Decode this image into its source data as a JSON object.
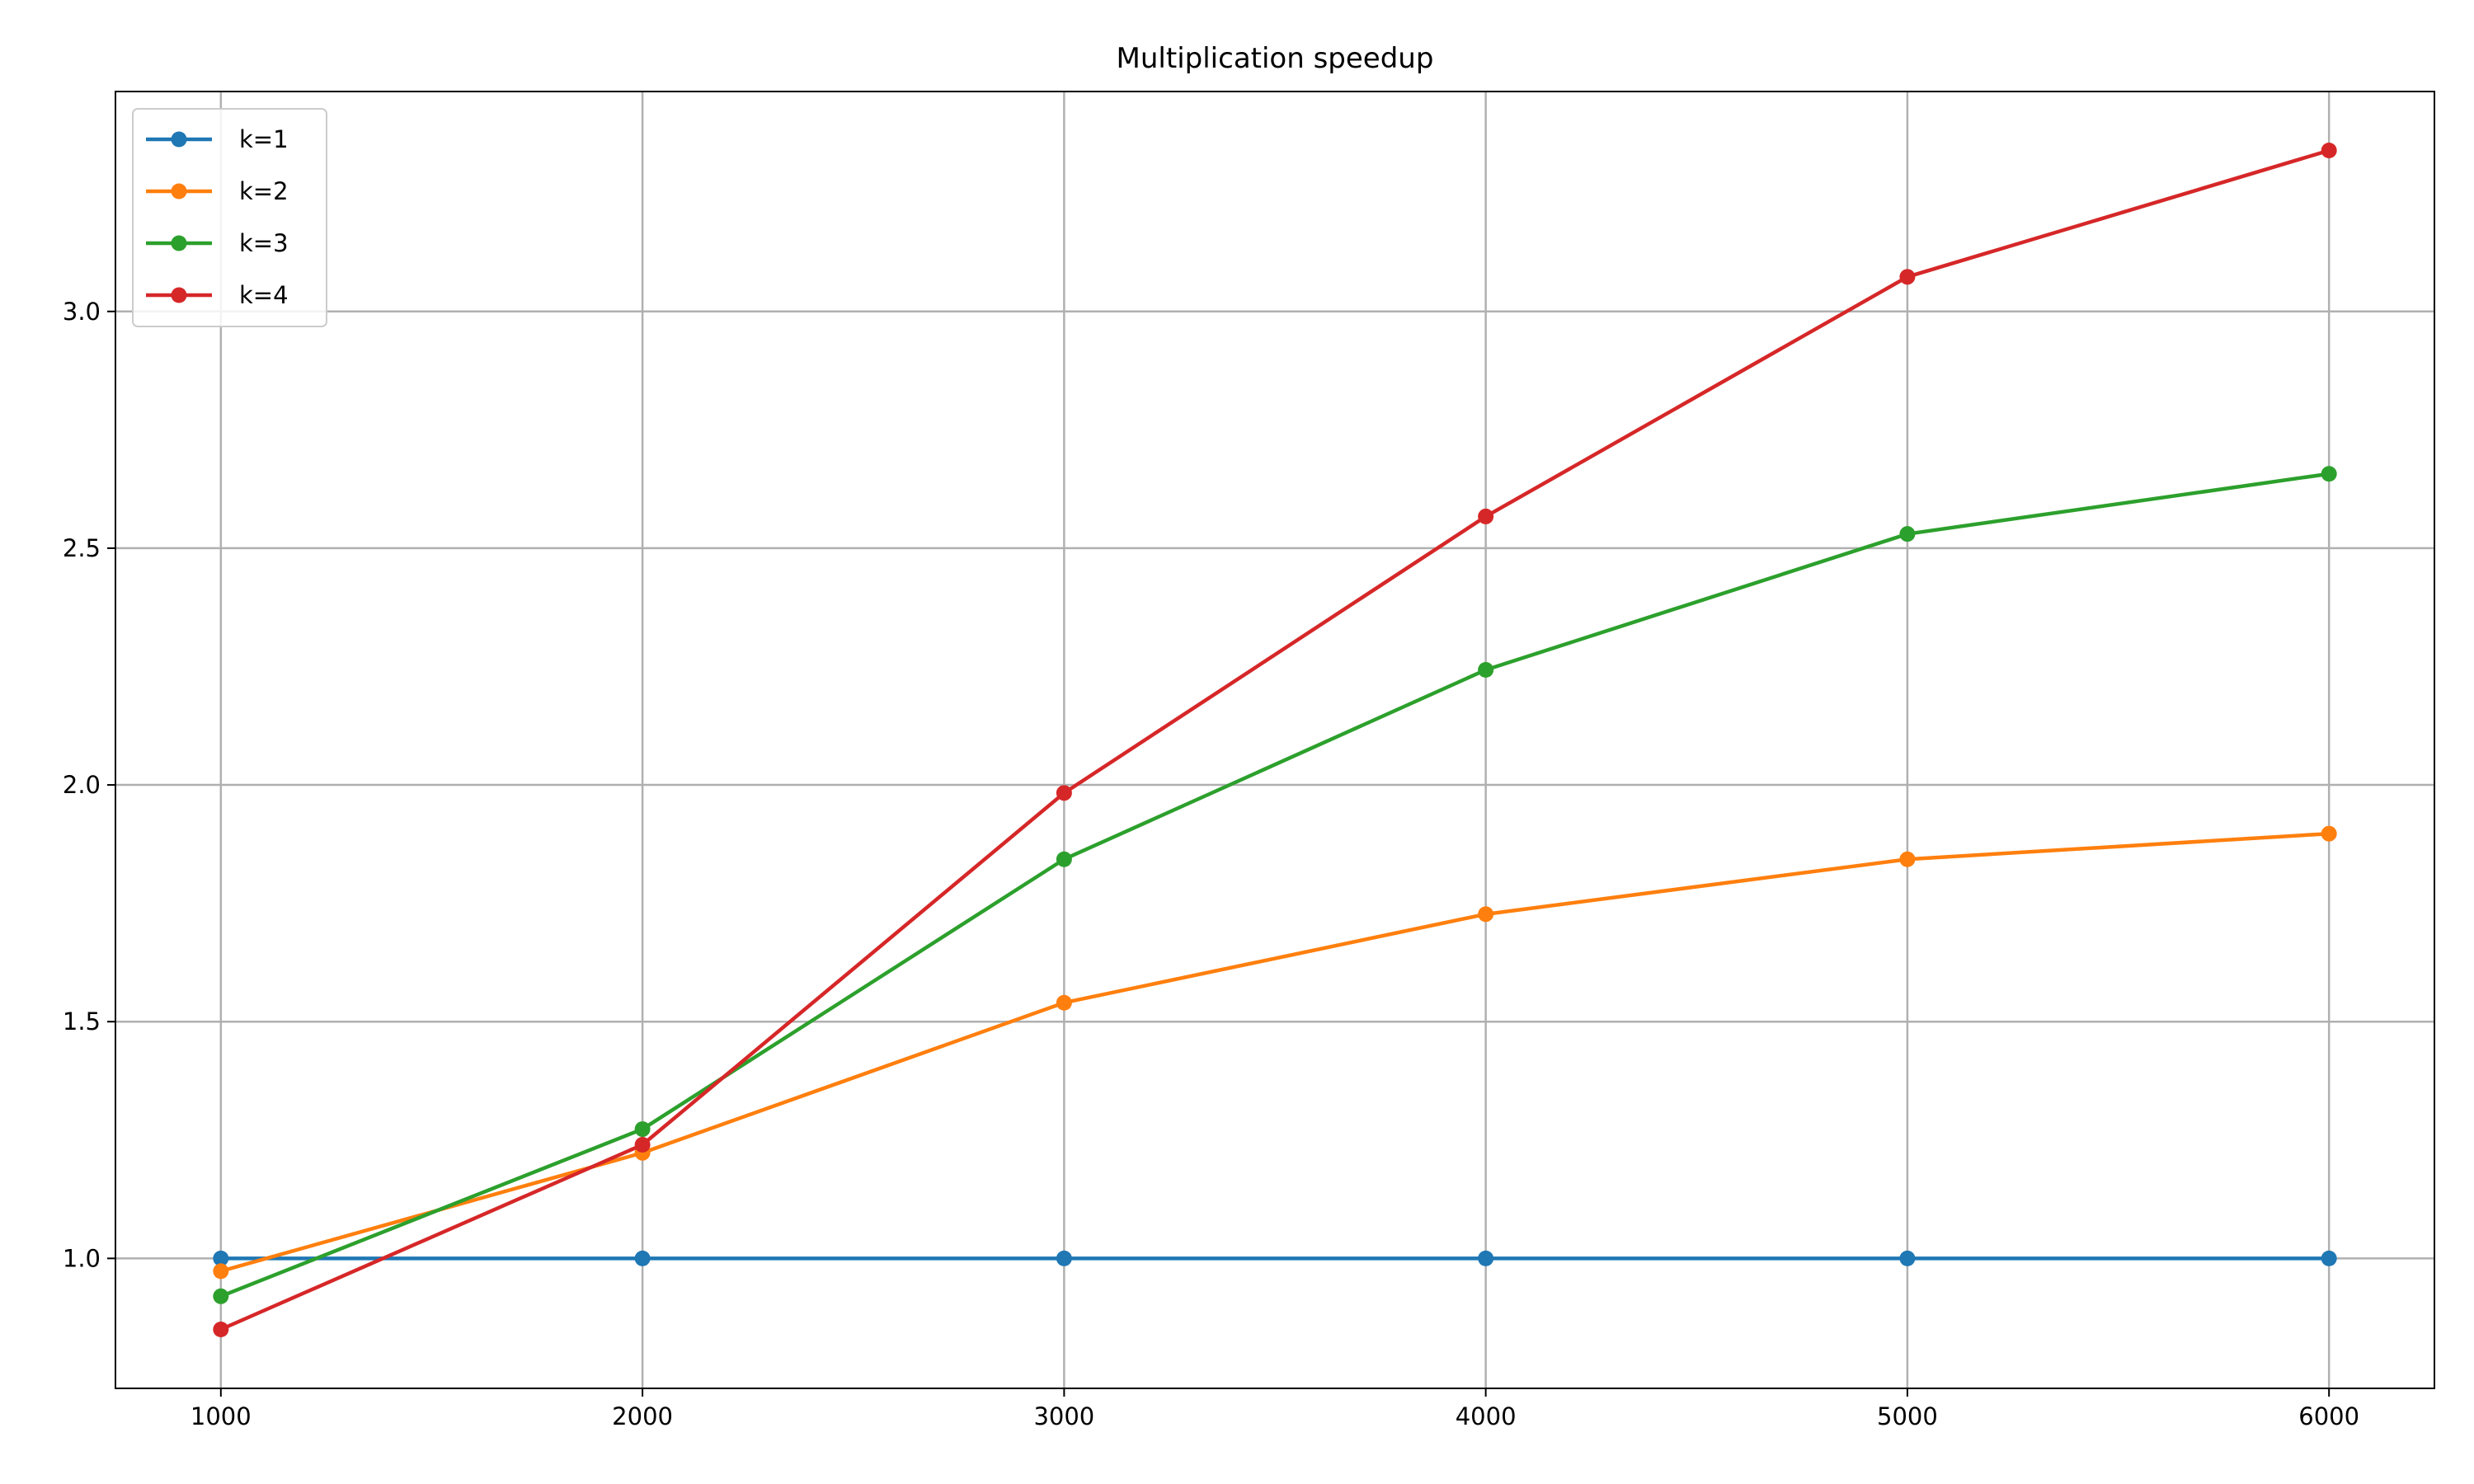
{
  "chart_data": {
    "type": "line",
    "title": "Multiplication speedup",
    "xlabel": "",
    "ylabel": "",
    "x": [
      1000,
      2000,
      3000,
      4000,
      5000,
      6000
    ],
    "xlim": [
      750,
      6250
    ],
    "ylim": [
      0.7255,
      3.4645
    ],
    "xticks": [
      1000,
      2000,
      3000,
      4000,
      5000,
      6000
    ],
    "xtick_labels": [
      "1000",
      "2000",
      "3000",
      "4000",
      "5000",
      "6000"
    ],
    "yticks": [
      1.0,
      1.5,
      2.0,
      2.5,
      3.0
    ],
    "ytick_labels": [
      "1.0",
      "1.5",
      "2.0",
      "2.5",
      "3.0"
    ],
    "grid": true,
    "legend_position": "top-left",
    "series": [
      {
        "name": "k=1",
        "color": "#1f77b4",
        "values": [
          1.0,
          1.0,
          1.0,
          1.0,
          1.0,
          1.0
        ]
      },
      {
        "name": "k=2",
        "color": "#ff7f0e",
        "values": [
          0.973,
          1.223,
          1.54,
          1.727,
          1.843,
          1.897
        ]
      },
      {
        "name": "k=3",
        "color": "#2ca02c",
        "values": [
          0.92,
          1.273,
          1.843,
          2.243,
          2.53,
          2.657
        ]
      },
      {
        "name": "k=4",
        "color": "#d62728",
        "values": [
          0.85,
          1.24,
          1.983,
          2.567,
          3.073,
          3.34
        ]
      }
    ]
  }
}
